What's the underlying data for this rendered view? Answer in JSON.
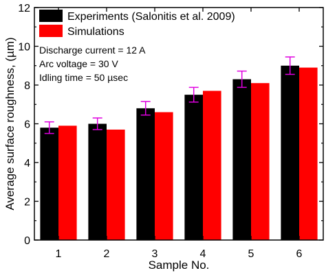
{
  "chart_data": {
    "type": "bar",
    "categories": [
      "1",
      "2",
      "3",
      "4",
      "5",
      "6"
    ],
    "series": [
      {
        "name": "Experiments (Salonitis et al. 2009)",
        "color": "#000000",
        "values": [
          5.8,
          6.0,
          6.8,
          7.5,
          8.3,
          9.0
        ],
        "error": [
          0.3,
          0.3,
          0.35,
          0.38,
          0.42,
          0.45
        ],
        "error_color": "#e000e0"
      },
      {
        "name": "Simulations",
        "color": "#ff0000",
        "values": [
          5.9,
          5.7,
          6.6,
          7.7,
          8.1,
          8.9
        ]
      }
    ],
    "xlabel": "Sample No.",
    "ylabel": "Average surface roughness, (µm)",
    "ylim": [
      0,
      12
    ],
    "yticks": [
      0,
      2,
      4,
      6,
      8,
      10,
      12
    ],
    "grid": false,
    "legend_position": "top-left",
    "annotations": [
      "Discharge current = 12 A",
      "Arc voltage = 30 V",
      "Idling time = 50 µsec"
    ]
  }
}
